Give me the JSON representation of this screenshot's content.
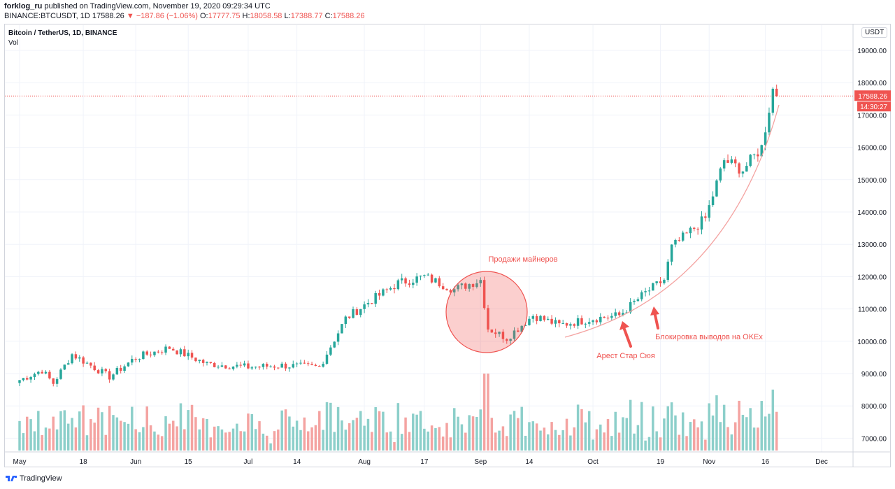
{
  "header": {
    "publisher": "forklog_ru",
    "published_text": "published on TradingView.com, November 19, 2020 09:29:34 UTC"
  },
  "ohlc_line": {
    "symbol": "BINANCE:BTCUSDT, 1D",
    "last": "17588.26",
    "change": "−187.86 (−1.06%)",
    "o_label": "O:",
    "o": "17777.75",
    "h_label": "H:",
    "h": "18058.58",
    "l_label": "L:",
    "l": "17388.77",
    "c_label": "C:",
    "c": "17588.26"
  },
  "legend": {
    "symbol_title": "Bitcoin / TetherUS, 1D, BINANCE",
    "volume_label": "Vol"
  },
  "currency_button": "USDT",
  "price_tag": {
    "price": "17588.26",
    "countdown": "14:30:27"
  },
  "footer": {
    "brand": "TradingView"
  },
  "colors": {
    "up": "#26a69a",
    "down": "#ef5350",
    "vol_up": "#8ccfca",
    "vol_down": "#f4a3a1",
    "annotation": "#ef5350"
  },
  "chart_data": {
    "type": "candlestick",
    "title": "Bitcoin / TetherUS, 1D, BINANCE",
    "ylim": [
      6700,
      19500
    ],
    "y_ticks": [
      "19000.00",
      "18000.00",
      "17000.00",
      "16000.00",
      "15000.00",
      "14000.00",
      "13000.00",
      "12000.00",
      "11000.00",
      "10000.00",
      "9000.00",
      "8000.00",
      "7000.00"
    ],
    "x_ticks": [
      "May",
      "18",
      "Jun",
      "15",
      "Jul",
      "14",
      "Aug",
      "17",
      "Sep",
      "14",
      "Oct",
      "19",
      "Nov",
      "16",
      "Dec"
    ],
    "last_price": 17588.26,
    "close_path": [
      [
        "May 1",
        8800
      ],
      [
        "May 7",
        9100
      ],
      [
        "May 10",
        8700
      ],
      [
        "May 15",
        9600
      ],
      [
        "May 25",
        8900
      ],
      [
        "Jun 1",
        9500
      ],
      [
        "Jun 10",
        9800
      ],
      [
        "Jun 20",
        9300
      ],
      [
        "Jul 1",
        9200
      ],
      [
        "Jul 10",
        9250
      ],
      [
        "Jul 20",
        9200
      ],
      [
        "Jul 27",
        10700
      ],
      [
        "Aug 2",
        11200
      ],
      [
        "Aug 10",
        11800
      ],
      [
        "Aug 17",
        12000
      ],
      [
        "Aug 25",
        11600
      ],
      [
        "Sep 1",
        11900
      ],
      [
        "Sep 3",
        10400
      ],
      [
        "Sep 8",
        10100
      ],
      [
        "Sep 15",
        10800
      ],
      [
        "Sep 22",
        10500
      ],
      [
        "Oct 1",
        10700
      ],
      [
        "Oct 8",
        10800
      ],
      [
        "Oct 15",
        11500
      ],
      [
        "Oct 20",
        11900
      ],
      [
        "Oct 22",
        12900
      ],
      [
        "Oct 31",
        13800
      ],
      [
        "Nov 5",
        15600
      ],
      [
        "Nov 10",
        15300
      ],
      [
        "Nov 15",
        16000
      ],
      [
        "Nov 18",
        17800
      ],
      [
        "Nov 19",
        17588
      ]
    ],
    "annotations": [
      {
        "text": "Продажи майнеров",
        "shape": "circle"
      },
      {
        "text": "Арест Стар Сюя",
        "shape": "arrow"
      },
      {
        "text": "Блокировка выводов на OKEx",
        "shape": "arrow"
      }
    ]
  }
}
